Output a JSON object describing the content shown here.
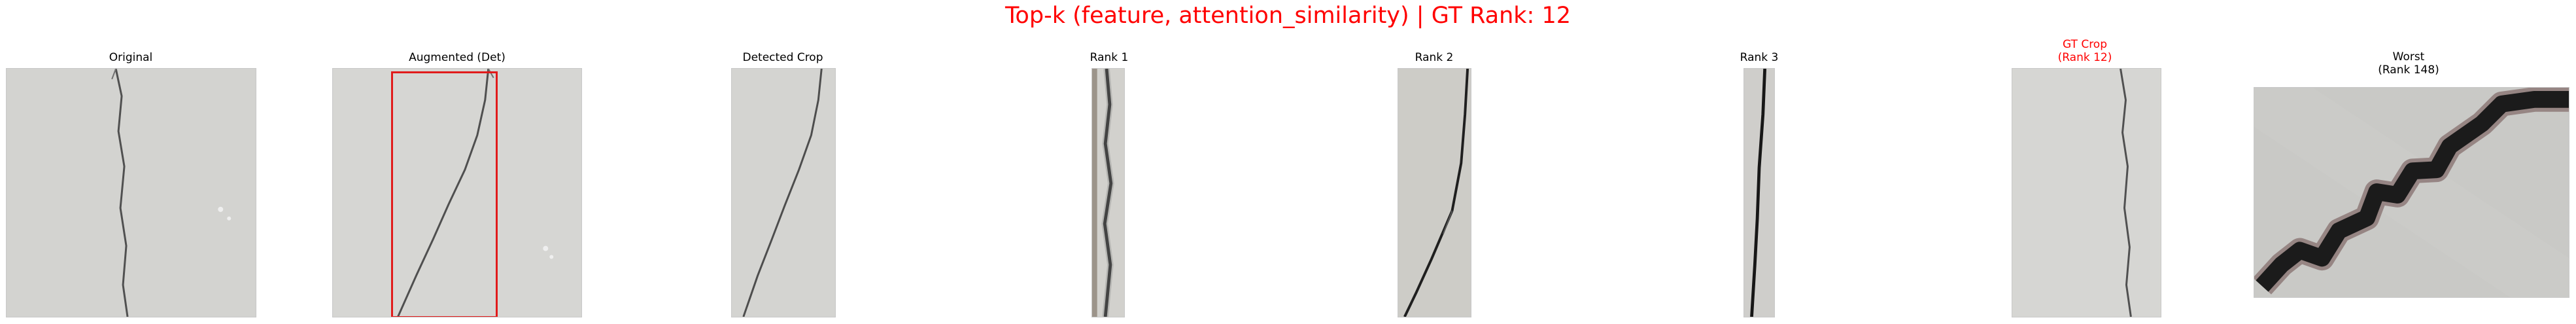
{
  "figure": {
    "title": "Top-k (feature, attention_similarity) | GT Rank: 12",
    "title_color": "#ff0000",
    "panels": [
      {
        "title": "Original",
        "kind": "wall"
      },
      {
        "title": "Augmented (Det)",
        "kind": "wall",
        "overlay": "detection-box",
        "overlay_color": "#e11b1b"
      },
      {
        "title": "Detected Crop",
        "kind": "wall-crop"
      },
      {
        "title": "Rank 1",
        "kind": "narrow-crack"
      },
      {
        "title": "Rank 2",
        "kind": "medium-crack"
      },
      {
        "title": "Rank 3",
        "kind": "narrow-crack"
      },
      {
        "title_line1": "GT Crop",
        "title_line2": "(Rank 12)",
        "title_color": "#ff0000",
        "kind": "wall-crop"
      },
      {
        "title_line1": "Worst",
        "title_line2": "(Rank 148)",
        "kind": "zoom-crack"
      }
    ]
  }
}
